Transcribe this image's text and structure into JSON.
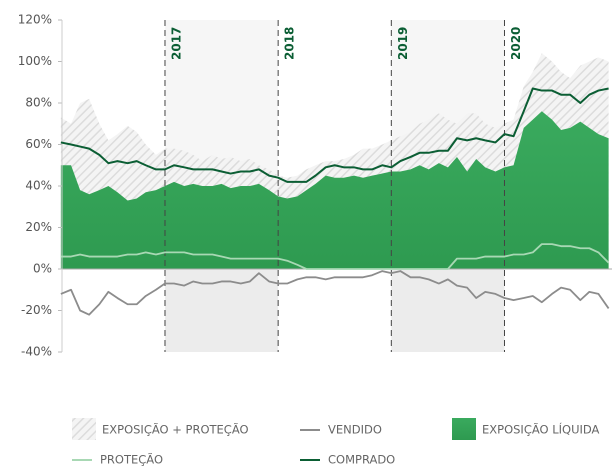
{
  "chart_data": {
    "type": "area-line",
    "x": [
      2016.08,
      2016.17,
      2016.25,
      2016.33,
      2016.42,
      2016.5,
      2016.58,
      2016.67,
      2016.75,
      2016.83,
      2016.92,
      2017,
      2017.08,
      2017.17,
      2017.25,
      2017.33,
      2017.42,
      2017.5,
      2017.58,
      2017.67,
      2017.75,
      2017.83,
      2017.92,
      2018,
      2018.08,
      2018.17,
      2018.25,
      2018.33,
      2018.42,
      2018.5,
      2018.58,
      2018.67,
      2018.75,
      2018.83,
      2018.92,
      2019,
      2019.08,
      2019.17,
      2019.25,
      2019.33,
      2019.42,
      2019.5,
      2019.58,
      2019.67,
      2019.75,
      2019.83,
      2019.92,
      2020,
      2020.08,
      2020.17,
      2020.25,
      2020.33,
      2020.42,
      2020.5,
      2020.58,
      2020.67,
      2020.75,
      2020.83,
      2020.92
    ],
    "xlim": [
      2016.09,
      2020.95
    ],
    "ylim": [
      -40,
      120
    ],
    "yticks": [
      {
        "value": -40,
        "label": "-40%"
      },
      {
        "value": -20,
        "label": "-20%"
      },
      {
        "value": 0,
        "label": "0%"
      },
      {
        "value": 20,
        "label": "20%"
      },
      {
        "value": 40,
        "label": "40%"
      },
      {
        "value": 60,
        "label": "60%"
      },
      {
        "value": 80,
        "label": "80%"
      },
      {
        "value": 100,
        "label": "100%"
      },
      {
        "value": 120,
        "label": "120%"
      }
    ],
    "year_lines": [
      2017,
      2018,
      2019,
      2020
    ],
    "shaded_ranges": [
      [
        2017,
        2018
      ],
      [
        2019,
        2020
      ]
    ],
    "series": [
      {
        "name": "EXPOSIÇÃO + PROTEÇÃO",
        "kind": "hatched-area",
        "color": "#d9d9d9",
        "values": [
          73,
          70,
          80,
          82,
          70,
          62,
          65,
          69,
          66,
          60,
          55,
          58,
          58,
          57,
          55,
          52,
          55,
          53,
          54,
          52,
          53,
          50,
          48,
          45,
          44,
          45,
          48,
          50,
          52,
          52,
          53,
          55,
          58,
          58,
          60,
          62,
          64,
          66,
          70,
          72,
          75,
          72,
          70,
          75,
          75,
          70,
          68,
          70,
          72,
          88,
          95,
          104,
          100,
          95,
          92,
          98,
          100,
          102,
          100
        ]
      },
      {
        "name": "VENDIDO",
        "kind": "line",
        "color": "#8c8c8c",
        "values": [
          -12,
          -10,
          -20,
          -22,
          -17,
          -11,
          -14,
          -17,
          -17,
          -13,
          -10,
          -7,
          -7,
          -8,
          -6,
          -7,
          -7,
          -6,
          -6,
          -7,
          -6,
          -2,
          -6,
          -7,
          -7,
          -5,
          -4,
          -4,
          -5,
          -4,
          -4,
          -4,
          -4,
          -3,
          -1,
          -2,
          -1,
          -4,
          -4,
          -5,
          -7,
          -5,
          -8,
          -9,
          -14,
          -11,
          -12,
          -14,
          -15,
          -14,
          -13,
          -16,
          -12,
          -9,
          -10,
          -15,
          -11,
          -12,
          -19
        ]
      },
      {
        "name": "EXPOSIÇÃO LÍQUIDA",
        "kind": "area",
        "color": "#3aaa5e",
        "values": [
          50,
          50,
          38,
          36,
          38,
          40,
          37,
          33,
          34,
          37,
          38,
          40,
          42,
          40,
          41,
          40,
          40,
          41,
          39,
          40,
          40,
          41,
          38,
          35,
          34,
          35,
          38,
          41,
          45,
          44,
          44,
          45,
          44,
          45,
          46,
          47,
          47,
          48,
          50,
          48,
          51,
          49,
          54,
          47,
          53,
          49,
          47,
          49,
          50,
          68,
          72,
          76,
          72,
          67,
          68,
          71,
          68,
          65,
          63
        ]
      },
      {
        "name": "PROTEÇÃO",
        "kind": "line",
        "color": "#a8d8b4",
        "values": [
          6,
          6,
          7,
          6,
          6,
          6,
          6,
          7,
          7,
          8,
          7,
          8,
          8,
          8,
          7,
          7,
          7,
          6,
          5,
          5,
          5,
          5,
          5,
          5,
          4,
          2,
          0,
          0,
          0,
          0,
          0,
          0,
          0,
          0,
          0,
          0,
          0,
          0,
          0,
          0,
          0,
          0,
          5,
          5,
          5,
          6,
          6,
          6,
          7,
          7,
          8,
          12,
          12,
          11,
          11,
          10,
          10,
          8,
          3
        ]
      },
      {
        "name": "COMPRADO",
        "kind": "line",
        "color": "#0b5e34",
        "values": [
          61,
          60,
          59,
          58,
          55,
          51,
          52,
          51,
          52,
          50,
          48,
          48,
          50,
          49,
          48,
          48,
          48,
          47,
          46,
          47,
          47,
          48,
          45,
          44,
          42,
          42,
          42,
          45,
          49,
          50,
          49,
          49,
          48,
          48,
          50,
          49,
          52,
          54,
          56,
          56,
          57,
          57,
          63,
          62,
          63,
          62,
          61,
          65,
          64,
          76,
          87,
          86,
          86,
          84,
          84,
          80,
          84,
          86,
          87
        ]
      }
    ]
  }
}
